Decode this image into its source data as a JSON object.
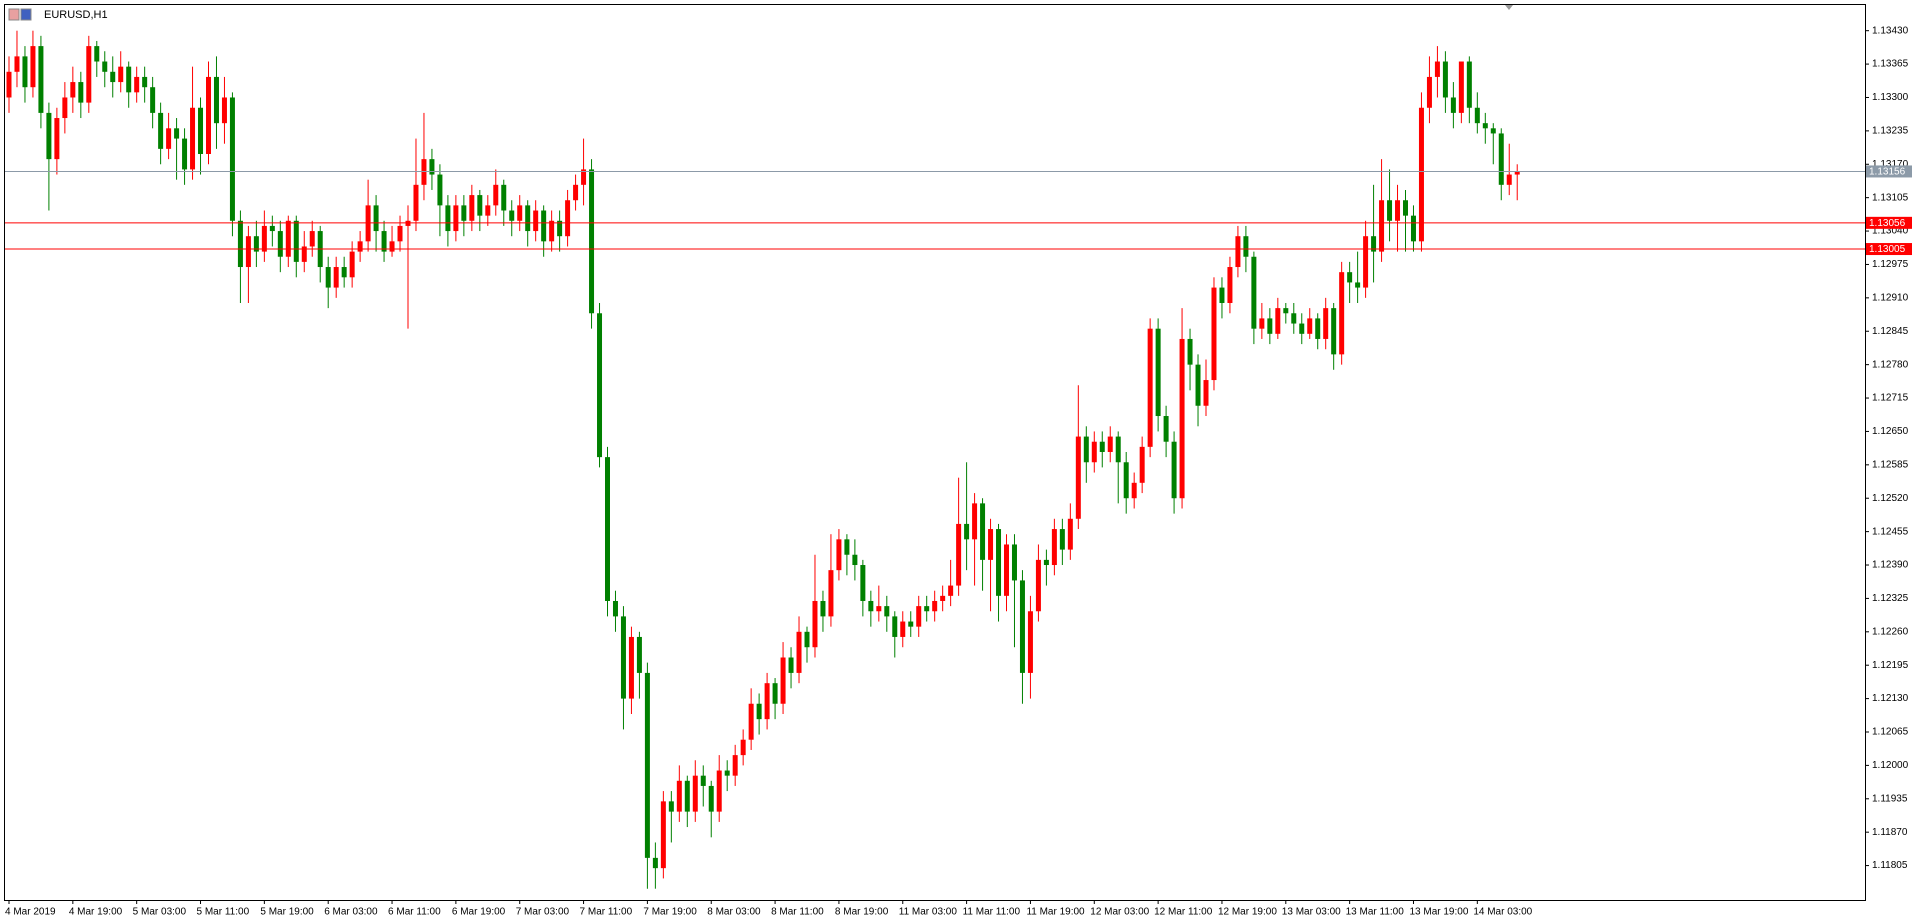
{
  "chart_data": {
    "type": "candlestick",
    "title": "EURUSD,H1",
    "up_color": "#ff0000",
    "down_color": "#008000",
    "categories": [
      "4 Mar 2019",
      null,
      null,
      null,
      null,
      null,
      null,
      null,
      "4 Mar 19:00",
      null,
      null,
      null,
      null,
      null,
      null,
      null,
      "5 Mar 03:00",
      null,
      null,
      null,
      null,
      null,
      null,
      null,
      "5 Mar 11:00",
      null,
      null,
      null,
      null,
      null,
      null,
      null,
      "5 Mar 19:00",
      null,
      null,
      null,
      null,
      null,
      null,
      null,
      "6 Mar 03:00",
      null,
      null,
      null,
      null,
      null,
      null,
      null,
      "6 Mar 11:00",
      null,
      null,
      null,
      null,
      null,
      null,
      null,
      "6 Mar 19:00",
      null,
      null,
      null,
      null,
      null,
      null,
      null,
      "7 Mar 03:00",
      null,
      null,
      null,
      null,
      null,
      null,
      null,
      "7 Mar 11:00",
      null,
      null,
      null,
      null,
      null,
      null,
      null,
      "7 Mar 19:00",
      null,
      null,
      null,
      null,
      null,
      null,
      null,
      "8 Mar 03:00",
      null,
      null,
      null,
      null,
      null,
      null,
      null,
      "8 Mar 11:00",
      null,
      null,
      null,
      null,
      null,
      null,
      null,
      "8 Mar 19:00",
      null,
      null,
      null,
      null,
      null,
      null,
      null,
      "11 Mar 03:00",
      null,
      null,
      null,
      null,
      null,
      null,
      null,
      "11 Mar 11:00",
      null,
      null,
      null,
      null,
      null,
      null,
      null,
      "11 Mar 19:00",
      null,
      null,
      null,
      null,
      null,
      null,
      null,
      "12 Mar 03:00",
      null,
      null,
      null,
      null,
      null,
      null,
      null,
      "12 Mar 11:00",
      null,
      null,
      null,
      null,
      null,
      null,
      null,
      "12 Mar 19:00",
      null,
      null,
      null,
      null,
      null,
      null,
      null,
      "13 Mar 03:00",
      null,
      null,
      null,
      null,
      null,
      null,
      null,
      "13 Mar 11:00",
      null,
      null,
      null,
      null,
      null,
      null,
      null,
      "13 Mar 19:00",
      null,
      null,
      null,
      null,
      null,
      null,
      null,
      "14 Mar 03:00",
      null,
      null,
      null,
      null,
      null
    ],
    "ohlc": [
      [
        1.133,
        1.1338,
        1.1327,
        1.1335
      ],
      [
        1.1335,
        1.1343,
        1.1332,
        1.1338
      ],
      [
        1.1338,
        1.134,
        1.1329,
        1.1332
      ],
      [
        1.1332,
        1.1343,
        1.133,
        1.134
      ],
      [
        1.134,
        1.1342,
        1.1324,
        1.1327
      ],
      [
        1.1327,
        1.1329,
        1.1308,
        1.1318
      ],
      [
        1.1318,
        1.1328,
        1.1315,
        1.1326
      ],
      [
        1.1326,
        1.1333,
        1.1323,
        1.133
      ],
      [
        1.133,
        1.1336,
        1.1327,
        1.1333
      ],
      [
        1.1333,
        1.1335,
        1.1326,
        1.1329
      ],
      [
        1.1329,
        1.1342,
        1.1327,
        1.134
      ],
      [
        1.134,
        1.1341,
        1.1334,
        1.1337
      ],
      [
        1.1337,
        1.1339,
        1.1332,
        1.1335
      ],
      [
        1.1335,
        1.1338,
        1.133,
        1.1333
      ],
      [
        1.1333,
        1.1339,
        1.1331,
        1.1336
      ],
      [
        1.1336,
        1.1337,
        1.1328,
        1.1331
      ],
      [
        1.1331,
        1.1336,
        1.1329,
        1.1334
      ],
      [
        1.1334,
        1.1336,
        1.1329,
        1.1332
      ],
      [
        1.1332,
        1.1334,
        1.1324,
        1.1327
      ],
      [
        1.1327,
        1.1329,
        1.1317,
        1.132
      ],
      [
        1.132,
        1.1327,
        1.1318,
        1.1324
      ],
      [
        1.1324,
        1.1326,
        1.1314,
        1.1322
      ],
      [
        1.1322,
        1.1324,
        1.1313,
        1.1316
      ],
      [
        1.1316,
        1.1336,
        1.1314,
        1.1328
      ],
      [
        1.1328,
        1.133,
        1.1315,
        1.1319
      ],
      [
        1.1319,
        1.1337,
        1.1317,
        1.1334
      ],
      [
        1.1334,
        1.1338,
        1.132,
        1.1325
      ],
      [
        1.1325,
        1.1334,
        1.1321,
        1.133
      ],
      [
        1.133,
        1.1331,
        1.1303,
        1.1306
      ],
      [
        1.1306,
        1.1308,
        1.129,
        1.1297
      ],
      [
        1.1297,
        1.1305,
        1.129,
        1.1303
      ],
      [
        1.1303,
        1.1306,
        1.1297,
        1.13
      ],
      [
        1.13,
        1.1308,
        1.1298,
        1.1305
      ],
      [
        1.1305,
        1.1307,
        1.1301,
        1.1304
      ],
      [
        1.1304,
        1.1306,
        1.1296,
        1.1299
      ],
      [
        1.1299,
        1.1307,
        1.1297,
        1.1306
      ],
      [
        1.1306,
        1.1307,
        1.1295,
        1.1298
      ],
      [
        1.1298,
        1.1304,
        1.1296,
        1.1301
      ],
      [
        1.1301,
        1.1306,
        1.1299,
        1.1304
      ],
      [
        1.1304,
        1.1305,
        1.1294,
        1.1297
      ],
      [
        1.1297,
        1.1299,
        1.1289,
        1.1293
      ],
      [
        1.1293,
        1.1299,
        1.1291,
        1.1297
      ],
      [
        1.1297,
        1.1299,
        1.1293,
        1.1295
      ],
      [
        1.1295,
        1.1302,
        1.1293,
        1.13
      ],
      [
        1.13,
        1.1304,
        1.1298,
        1.1302
      ],
      [
        1.1302,
        1.1314,
        1.13,
        1.1309
      ],
      [
        1.1309,
        1.1311,
        1.13,
        1.1304
      ],
      [
        1.1304,
        1.1306,
        1.1298,
        1.13
      ],
      [
        1.13,
        1.1305,
        1.1299,
        1.1302
      ],
      [
        1.1302,
        1.1307,
        1.13,
        1.1305
      ],
      [
        1.1305,
        1.1309,
        1.1285,
        1.1306
      ],
      [
        1.1306,
        1.1322,
        1.1304,
        1.1313
      ],
      [
        1.1313,
        1.1327,
        1.131,
        1.1318
      ],
      [
        1.1318,
        1.132,
        1.1312,
        1.1315
      ],
      [
        1.1315,
        1.1317,
        1.1303,
        1.1309
      ],
      [
        1.1309,
        1.1311,
        1.1301,
        1.1304
      ],
      [
        1.1304,
        1.1311,
        1.1302,
        1.1309
      ],
      [
        1.1309,
        1.1311,
        1.1303,
        1.1306
      ],
      [
        1.1306,
        1.1313,
        1.1304,
        1.1311
      ],
      [
        1.1311,
        1.1312,
        1.1304,
        1.1307
      ],
      [
        1.1307,
        1.1311,
        1.1305,
        1.1309
      ],
      [
        1.1309,
        1.1316,
        1.1307,
        1.1313
      ],
      [
        1.1313,
        1.1314,
        1.1305,
        1.1308
      ],
      [
        1.1308,
        1.131,
        1.1303,
        1.1306
      ],
      [
        1.1306,
        1.1311,
        1.1304,
        1.1309
      ],
      [
        1.1309,
        1.131,
        1.1301,
        1.1304
      ],
      [
        1.1304,
        1.131,
        1.1302,
        1.1308
      ],
      [
        1.1308,
        1.1309,
        1.1299,
        1.1302
      ],
      [
        1.1302,
        1.1308,
        1.13,
        1.1306
      ],
      [
        1.1306,
        1.1308,
        1.13,
        1.1303
      ],
      [
        1.1303,
        1.1312,
        1.1301,
        1.131
      ],
      [
        1.131,
        1.1315,
        1.1308,
        1.1313
      ],
      [
        1.1313,
        1.1322,
        1.1309,
        1.1316
      ],
      [
        1.1316,
        1.1318,
        1.1285,
        1.1288
      ],
      [
        1.1288,
        1.129,
        1.1258,
        1.126
      ],
      [
        1.126,
        1.1262,
        1.1229,
        1.1232
      ],
      [
        1.1232,
        1.1234,
        1.1226,
        1.1229
      ],
      [
        1.1229,
        1.1231,
        1.1207,
        1.1213
      ],
      [
        1.1213,
        1.1227,
        1.121,
        1.1225
      ],
      [
        1.1225,
        1.1226,
        1.1213,
        1.1218
      ],
      [
        1.1218,
        1.122,
        1.1176,
        1.1182
      ],
      [
        1.1182,
        1.1185,
        1.1176,
        1.118
      ],
      [
        1.118,
        1.1195,
        1.1178,
        1.1193
      ],
      [
        1.1193,
        1.1195,
        1.1185,
        1.1191
      ],
      [
        1.1191,
        1.12,
        1.1189,
        1.1197
      ],
      [
        1.1197,
        1.1198,
        1.1188,
        1.1191
      ],
      [
        1.1191,
        1.1201,
        1.1189,
        1.1198
      ],
      [
        1.1198,
        1.12,
        1.1192,
        1.1196
      ],
      [
        1.1196,
        1.1197,
        1.1186,
        1.1191
      ],
      [
        1.1191,
        1.1202,
        1.1189,
        1.1199
      ],
      [
        1.1199,
        1.1201,
        1.1195,
        1.1198
      ],
      [
        1.1198,
        1.1204,
        1.1196,
        1.1202
      ],
      [
        1.1202,
        1.1207,
        1.12,
        1.1205
      ],
      [
        1.1205,
        1.1215,
        1.1203,
        1.1212
      ],
      [
        1.1212,
        1.1214,
        1.1206,
        1.1209
      ],
      [
        1.1209,
        1.1218,
        1.1207,
        1.1216
      ],
      [
        1.1216,
        1.1217,
        1.1209,
        1.1212
      ],
      [
        1.1212,
        1.1224,
        1.121,
        1.1221
      ],
      [
        1.1221,
        1.1223,
        1.1215,
        1.1218
      ],
      [
        1.1218,
        1.1229,
        1.1216,
        1.1226
      ],
      [
        1.1226,
        1.1227,
        1.122,
        1.1223
      ],
      [
        1.1223,
        1.1241,
        1.1221,
        1.1232
      ],
      [
        1.1232,
        1.1234,
        1.1226,
        1.1229
      ],
      [
        1.1229,
        1.1245,
        1.1227,
        1.1238
      ],
      [
        1.1238,
        1.1246,
        1.1236,
        1.1244
      ],
      [
        1.1244,
        1.1245,
        1.1237,
        1.1241
      ],
      [
        1.1241,
        1.1244,
        1.1236,
        1.1239
      ],
      [
        1.1239,
        1.124,
        1.1229,
        1.1232
      ],
      [
        1.1232,
        1.1234,
        1.1227,
        1.123
      ],
      [
        1.123,
        1.1235,
        1.1228,
        1.1231
      ],
      [
        1.1231,
        1.1233,
        1.1226,
        1.1229
      ],
      [
        1.1229,
        1.123,
        1.1221,
        1.1225
      ],
      [
        1.1225,
        1.123,
        1.1223,
        1.1228
      ],
      [
        1.1228,
        1.123,
        1.1225,
        1.1227
      ],
      [
        1.1227,
        1.1233,
        1.1225,
        1.1231
      ],
      [
        1.1231,
        1.1233,
        1.1228,
        1.123
      ],
      [
        1.123,
        1.1234,
        1.1228,
        1.1232
      ],
      [
        1.1232,
        1.1235,
        1.123,
        1.1233
      ],
      [
        1.1233,
        1.124,
        1.1231,
        1.1235
      ],
      [
        1.1235,
        1.1256,
        1.1233,
        1.1247
      ],
      [
        1.1247,
        1.1259,
        1.1238,
        1.1244
      ],
      [
        1.1244,
        1.1253,
        1.1235,
        1.1251
      ],
      [
        1.1251,
        1.1252,
        1.1234,
        1.124
      ],
      [
        1.124,
        1.1248,
        1.123,
        1.1246
      ],
      [
        1.1246,
        1.1247,
        1.1228,
        1.1233
      ],
      [
        1.1233,
        1.1245,
        1.123,
        1.1243
      ],
      [
        1.1243,
        1.1245,
        1.1223,
        1.1236
      ],
      [
        1.1236,
        1.1238,
        1.1212,
        1.1218
      ],
      [
        1.1218,
        1.1233,
        1.1213,
        1.123
      ],
      [
        1.123,
        1.1243,
        1.1228,
        1.124
      ],
      [
        1.124,
        1.1242,
        1.1235,
        1.1239
      ],
      [
        1.1239,
        1.1248,
        1.1237,
        1.1246
      ],
      [
        1.1246,
        1.1248,
        1.1239,
        1.1242
      ],
      [
        1.1242,
        1.1251,
        1.124,
        1.1248
      ],
      [
        1.1248,
        1.1274,
        1.1246,
        1.1264
      ],
      [
        1.1264,
        1.1266,
        1.1255,
        1.1259
      ],
      [
        1.1259,
        1.1265,
        1.1257,
        1.1263
      ],
      [
        1.1263,
        1.1265,
        1.1258,
        1.1261
      ],
      [
        1.1261,
        1.1266,
        1.1259,
        1.1264
      ],
      [
        1.1264,
        1.1265,
        1.1251,
        1.1259
      ],
      [
        1.1259,
        1.1261,
        1.1249,
        1.1252
      ],
      [
        1.1252,
        1.1257,
        1.125,
        1.1255
      ],
      [
        1.1255,
        1.1264,
        1.1253,
        1.1262
      ],
      [
        1.1262,
        1.1287,
        1.126,
        1.1285
      ],
      [
        1.1285,
        1.1287,
        1.1265,
        1.1268
      ],
      [
        1.1268,
        1.127,
        1.126,
        1.1263
      ],
      [
        1.1263,
        1.1265,
        1.1249,
        1.1252
      ],
      [
        1.1252,
        1.1289,
        1.125,
        1.1283
      ],
      [
        1.1283,
        1.1285,
        1.1273,
        1.1278
      ],
      [
        1.1278,
        1.128,
        1.1266,
        1.127
      ],
      [
        1.127,
        1.1279,
        1.1268,
        1.1275
      ],
      [
        1.1275,
        1.1295,
        1.1273,
        1.1293
      ],
      [
        1.1293,
        1.1295,
        1.1287,
        1.129
      ],
      [
        1.129,
        1.1299,
        1.1288,
        1.1297
      ],
      [
        1.1297,
        1.1305,
        1.1295,
        1.1303
      ],
      [
        1.1303,
        1.1305,
        1.1296,
        1.1299
      ],
      [
        1.1299,
        1.13,
        1.1282,
        1.1285
      ],
      [
        1.1285,
        1.129,
        1.1283,
        1.1287
      ],
      [
        1.1287,
        1.1289,
        1.1282,
        1.1284
      ],
      [
        1.1284,
        1.1291,
        1.1283,
        1.1289
      ],
      [
        1.1289,
        1.129,
        1.1286,
        1.1288
      ],
      [
        1.1288,
        1.129,
        1.1284,
        1.1286
      ],
      [
        1.1286,
        1.1288,
        1.1282,
        1.1284
      ],
      [
        1.1284,
        1.1289,
        1.1283,
        1.1287
      ],
      [
        1.1287,
        1.1288,
        1.1281,
        1.1283
      ],
      [
        1.1283,
        1.1291,
        1.1281,
        1.1289
      ],
      [
        1.1289,
        1.129,
        1.1277,
        1.128
      ],
      [
        1.128,
        1.1298,
        1.1278,
        1.1296
      ],
      [
        1.1296,
        1.1298,
        1.129,
        1.1294
      ],
      [
        1.1294,
        1.13,
        1.129,
        1.1293
      ],
      [
        1.1293,
        1.1306,
        1.1291,
        1.1303
      ],
      [
        1.1303,
        1.1313,
        1.1294,
        1.13
      ],
      [
        1.13,
        1.1318,
        1.1298,
        1.131
      ],
      [
        1.131,
        1.1316,
        1.1302,
        1.1306
      ],
      [
        1.1306,
        1.1313,
        1.13,
        1.131
      ],
      [
        1.131,
        1.1312,
        1.13,
        1.1307
      ],
      [
        1.1307,
        1.1309,
        1.13,
        1.1302
      ],
      [
        1.1302,
        1.1331,
        1.13,
        1.1328
      ],
      [
        1.1328,
        1.1338,
        1.1325,
        1.1334
      ],
      [
        1.1334,
        1.134,
        1.133,
        1.1337
      ],
      [
        1.1337,
        1.1339,
        1.1327,
        1.133
      ],
      [
        1.133,
        1.1333,
        1.1324,
        1.1327
      ],
      [
        1.1327,
        1.1337,
        1.1325,
        1.1337
      ],
      [
        1.1337,
        1.1338,
        1.1325,
        1.1328
      ],
      [
        1.1328,
        1.1331,
        1.1323,
        1.1325
      ],
      [
        1.1325,
        1.1327,
        1.1321,
        1.1324
      ],
      [
        1.1324,
        1.1325,
        1.1317,
        1.1323
      ],
      [
        1.1323,
        1.1324,
        1.131,
        1.1313
      ],
      [
        1.1313,
        1.1321,
        1.1311,
        1.1315
      ],
      [
        1.1315,
        1.1317,
        1.131,
        1.13156
      ]
    ],
    "ylim": [
      1.11738,
      1.1348
    ],
    "yticks": [
      {
        "value": 1.1343,
        "label": "1.13430"
      },
      {
        "value": 1.13365,
        "label": "1.13365"
      },
      {
        "value": 1.133,
        "label": "1.13300"
      },
      {
        "value": 1.13235,
        "label": "1.13235"
      },
      {
        "value": 1.1317,
        "label": "1.13170"
      },
      {
        "value": 1.13105,
        "label": "1.13105"
      },
      {
        "value": 1.1304,
        "label": "1.13040"
      },
      {
        "value": 1.12975,
        "label": "1.12975"
      },
      {
        "value": 1.1291,
        "label": "1.12910"
      },
      {
        "value": 1.12845,
        "label": "1.12845"
      },
      {
        "value": 1.1278,
        "label": "1.12780"
      },
      {
        "value": 1.12715,
        "label": "1.12715"
      },
      {
        "value": 1.1265,
        "label": "1.12650"
      },
      {
        "value": 1.12585,
        "label": "1.12585"
      },
      {
        "value": 1.1252,
        "label": "1.12520"
      },
      {
        "value": 1.12455,
        "label": "1.12455"
      },
      {
        "value": 1.1239,
        "label": "1.12390"
      },
      {
        "value": 1.12325,
        "label": "1.12325"
      },
      {
        "value": 1.1226,
        "label": "1.12260"
      },
      {
        "value": 1.12195,
        "label": "1.12195"
      },
      {
        "value": 1.1213,
        "label": "1.12130"
      },
      {
        "value": 1.12065,
        "label": "1.12065"
      },
      {
        "value": 1.12,
        "label": "1.12000"
      },
      {
        "value": 1.11935,
        "label": "1.11935"
      },
      {
        "value": 1.1187,
        "label": "1.11870"
      },
      {
        "value": 1.11805,
        "label": "1.11805"
      }
    ],
    "hlines": [
      {
        "value": 1.13156,
        "color": "#8c9aa8"
      },
      {
        "value": 1.13056,
        "color": "#ff0000"
      },
      {
        "value": 1.13005,
        "color": "#ff0000"
      }
    ],
    "grid": false
  }
}
